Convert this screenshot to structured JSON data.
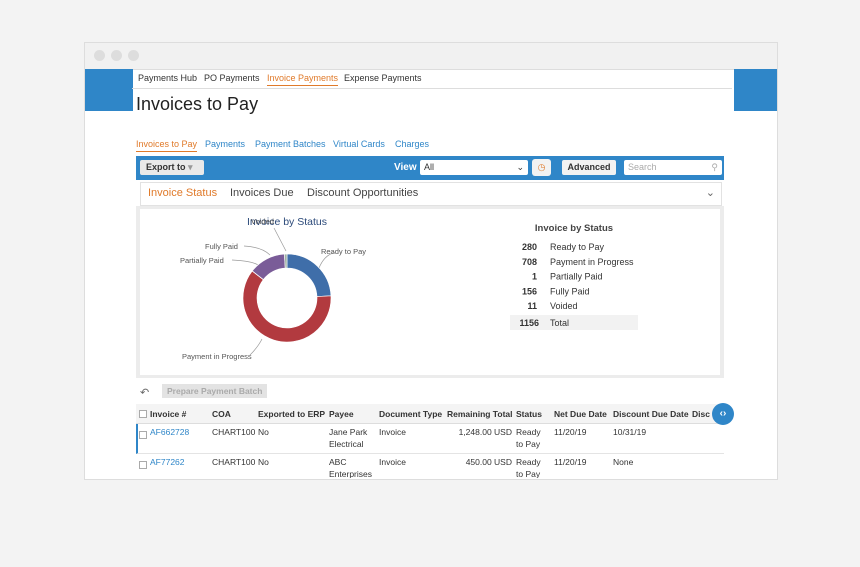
{
  "top_nav": [
    "Payments Hub",
    "PO Payments",
    "Invoice Payments",
    "Expense Payments"
  ],
  "page_title": "Invoices to Pay",
  "sub_nav": [
    "Invoices to Pay",
    "Payments",
    "Payment Batches",
    "Virtual Cards",
    "Charges"
  ],
  "toolbar": {
    "export": "Export to",
    "view_label": "View",
    "view_value": "All",
    "advanced": "Advanced",
    "search_placeholder": "Search"
  },
  "tabs": [
    "Invoice Status",
    "Invoices Due",
    "Discount Opportunities"
  ],
  "chart_data": {
    "type": "donut",
    "title": "Invoice by Status",
    "categories": [
      "Ready to Pay",
      "Payment in Progress",
      "Partially Paid",
      "Fully Paid",
      "Voided"
    ],
    "values": [
      280,
      708,
      1,
      156,
      11
    ],
    "colors": [
      "#3f6ea9",
      "#b23a3f",
      "#c9a95c",
      "#7a5c98",
      "#9fb3a4"
    ],
    "total": 1156,
    "total_label": "Total"
  },
  "grid": {
    "button": "Prepare Payment Batch",
    "columns": [
      "Invoice #",
      "COA",
      "Exported to ERP",
      "Payee",
      "Document Type",
      "Remaining Total",
      "Status",
      "Net Due Date",
      "Discount Due Date",
      "Disco"
    ],
    "rows": [
      [
        "AF662728",
        "CHART100",
        "No",
        "Jane Park Electrical",
        "Invoice",
        "1,248.00 USD",
        "Ready to Pay",
        "11/20/19",
        "10/31/19"
      ],
      [
        "AF77262",
        "CHART100",
        "No",
        "ABC Enterprises",
        "Invoice",
        "450.00 USD",
        "Ready to Pay",
        "11/20/19",
        "None"
      ]
    ]
  }
}
